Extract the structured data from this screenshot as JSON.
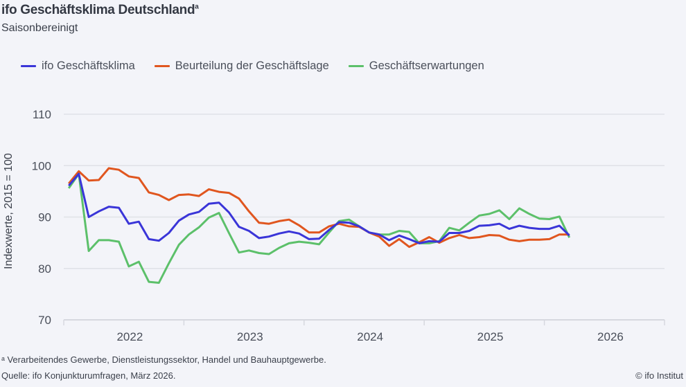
{
  "header": {
    "title": "ifo Geschäftsklima Deutschland",
    "title_sup": "a",
    "subtitle": "Saisonbereinigt"
  },
  "footer": {
    "note": "ᵃ Verarbeitendes Gewerbe, Dienstleistungssektor, Handel und Bauhauptgewerbe.",
    "source": "Quelle: ifo Konjunkturumfragen, März 2026.",
    "copyright": "© ifo Institut"
  },
  "chart_data": {
    "type": "line",
    "title": "ifo Geschäftsklima Deutschland",
    "ylabel": "Indexwerte, 2015 = 100",
    "xlabel": "",
    "ylim": [
      70,
      110
    ],
    "yticks": [
      "70",
      "80",
      "90",
      "100",
      "110"
    ],
    "xticks": [
      "2022",
      "2023",
      "2024",
      "2025",
      "2026"
    ],
    "xrange": [
      "2022-01",
      "2026-12"
    ],
    "grid": "horizontal",
    "legend": "top-left",
    "x": [
      "2022-01",
      "2022-02",
      "2022-03",
      "2022-04",
      "2022-05",
      "2022-06",
      "2022-07",
      "2022-08",
      "2022-09",
      "2022-10",
      "2022-11",
      "2022-12",
      "2023-01",
      "2023-02",
      "2023-03",
      "2023-04",
      "2023-05",
      "2023-06",
      "2023-07",
      "2023-08",
      "2023-09",
      "2023-10",
      "2023-11",
      "2023-12",
      "2024-01",
      "2024-02",
      "2024-03",
      "2024-04",
      "2024-05",
      "2024-06",
      "2024-07",
      "2024-08",
      "2024-09",
      "2024-10",
      "2024-11",
      "2024-12",
      "2025-01",
      "2025-02",
      "2025-03",
      "2025-04",
      "2025-05",
      "2025-06",
      "2025-07",
      "2025-08",
      "2025-09",
      "2025-10",
      "2025-11",
      "2025-12",
      "2026-01",
      "2026-02",
      "2026-03"
    ],
    "series": [
      {
        "name": "ifo Geschäftsklima",
        "color": "#3a35d8",
        "values": [
          96.1,
          98.4,
          90.0,
          91.1,
          92.0,
          91.8,
          88.7,
          89.1,
          85.7,
          85.4,
          86.9,
          89.3,
          90.5,
          91.0,
          92.6,
          92.8,
          90.9,
          88.1,
          87.3,
          85.9,
          86.2,
          86.8,
          87.2,
          86.8,
          85.7,
          85.8,
          87.5,
          89.0,
          88.9,
          88.2,
          87.0,
          86.6,
          85.5,
          86.4,
          85.7,
          84.9,
          85.3,
          85.2,
          86.9,
          86.9,
          87.3,
          88.3,
          88.4,
          88.7,
          87.7,
          88.3,
          87.9,
          87.7,
          87.7,
          88.3,
          86.4
        ]
      },
      {
        "name": "Beurteilung der Geschäftslage",
        "color": "#e0561f",
        "values": [
          96.5,
          98.9,
          97.1,
          97.2,
          99.5,
          99.2,
          97.9,
          97.6,
          94.8,
          94.3,
          93.3,
          94.3,
          94.4,
          94.1,
          95.4,
          94.9,
          94.7,
          93.6,
          91.1,
          88.9,
          88.7,
          89.2,
          89.5,
          88.4,
          87.0,
          87.0,
          88.2,
          88.7,
          88.2,
          88.1,
          87.0,
          86.2,
          84.4,
          85.7,
          84.2,
          85.1,
          86.1,
          85.0,
          85.9,
          86.5,
          85.9,
          86.1,
          86.5,
          86.4,
          85.6,
          85.3,
          85.6,
          85.6,
          85.7,
          86.6,
          86.6
        ]
      },
      {
        "name": "Geschäftserwartungen",
        "color": "#5cc06a",
        "values": [
          95.6,
          98.4,
          83.4,
          85.5,
          85.5,
          85.2,
          80.4,
          81.3,
          77.4,
          77.2,
          81.0,
          84.6,
          86.6,
          88.0,
          89.9,
          90.8,
          86.9,
          83.1,
          83.5,
          83.0,
          82.8,
          84.0,
          84.9,
          85.2,
          85.0,
          84.7,
          87.0,
          89.2,
          89.5,
          88.2,
          87.0,
          86.6,
          86.6,
          87.3,
          87.1,
          84.9,
          84.9,
          85.3,
          87.9,
          87.4,
          88.9,
          90.3,
          90.6,
          91.3,
          89.6,
          91.7,
          90.6,
          89.7,
          89.6,
          90.1,
          86.0
        ]
      }
    ]
  }
}
